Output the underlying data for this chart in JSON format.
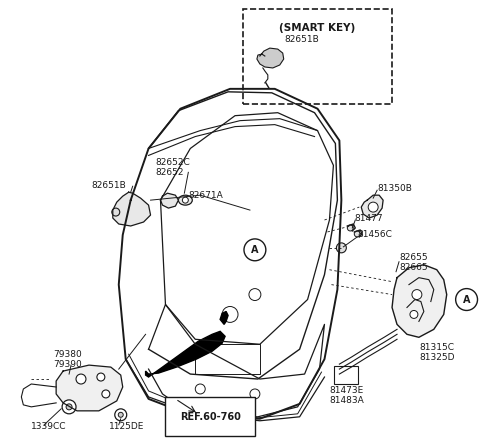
{
  "background_color": "#ffffff",
  "line_color": "#1a1a1a",
  "labels": {
    "smart_key_box": "(SMART KEY)",
    "82651B_top": "82651B",
    "82652C": "82652C",
    "82652": "82652",
    "82651B_main": "82651B",
    "82671A": "82671A",
    "81350B": "81350B",
    "81477": "81477",
    "81456C": "81456C",
    "82655": "82655",
    "82665": "82665",
    "A_center": "A",
    "A_right": "A",
    "79380": "79380",
    "79390": "79390",
    "ref": "REF.60-760",
    "1339CC": "1339CC",
    "1125DE": "1125DE",
    "81315C": "81315C",
    "81325D": "81325D",
    "81473E": "81473E",
    "81483A": "81483A"
  }
}
